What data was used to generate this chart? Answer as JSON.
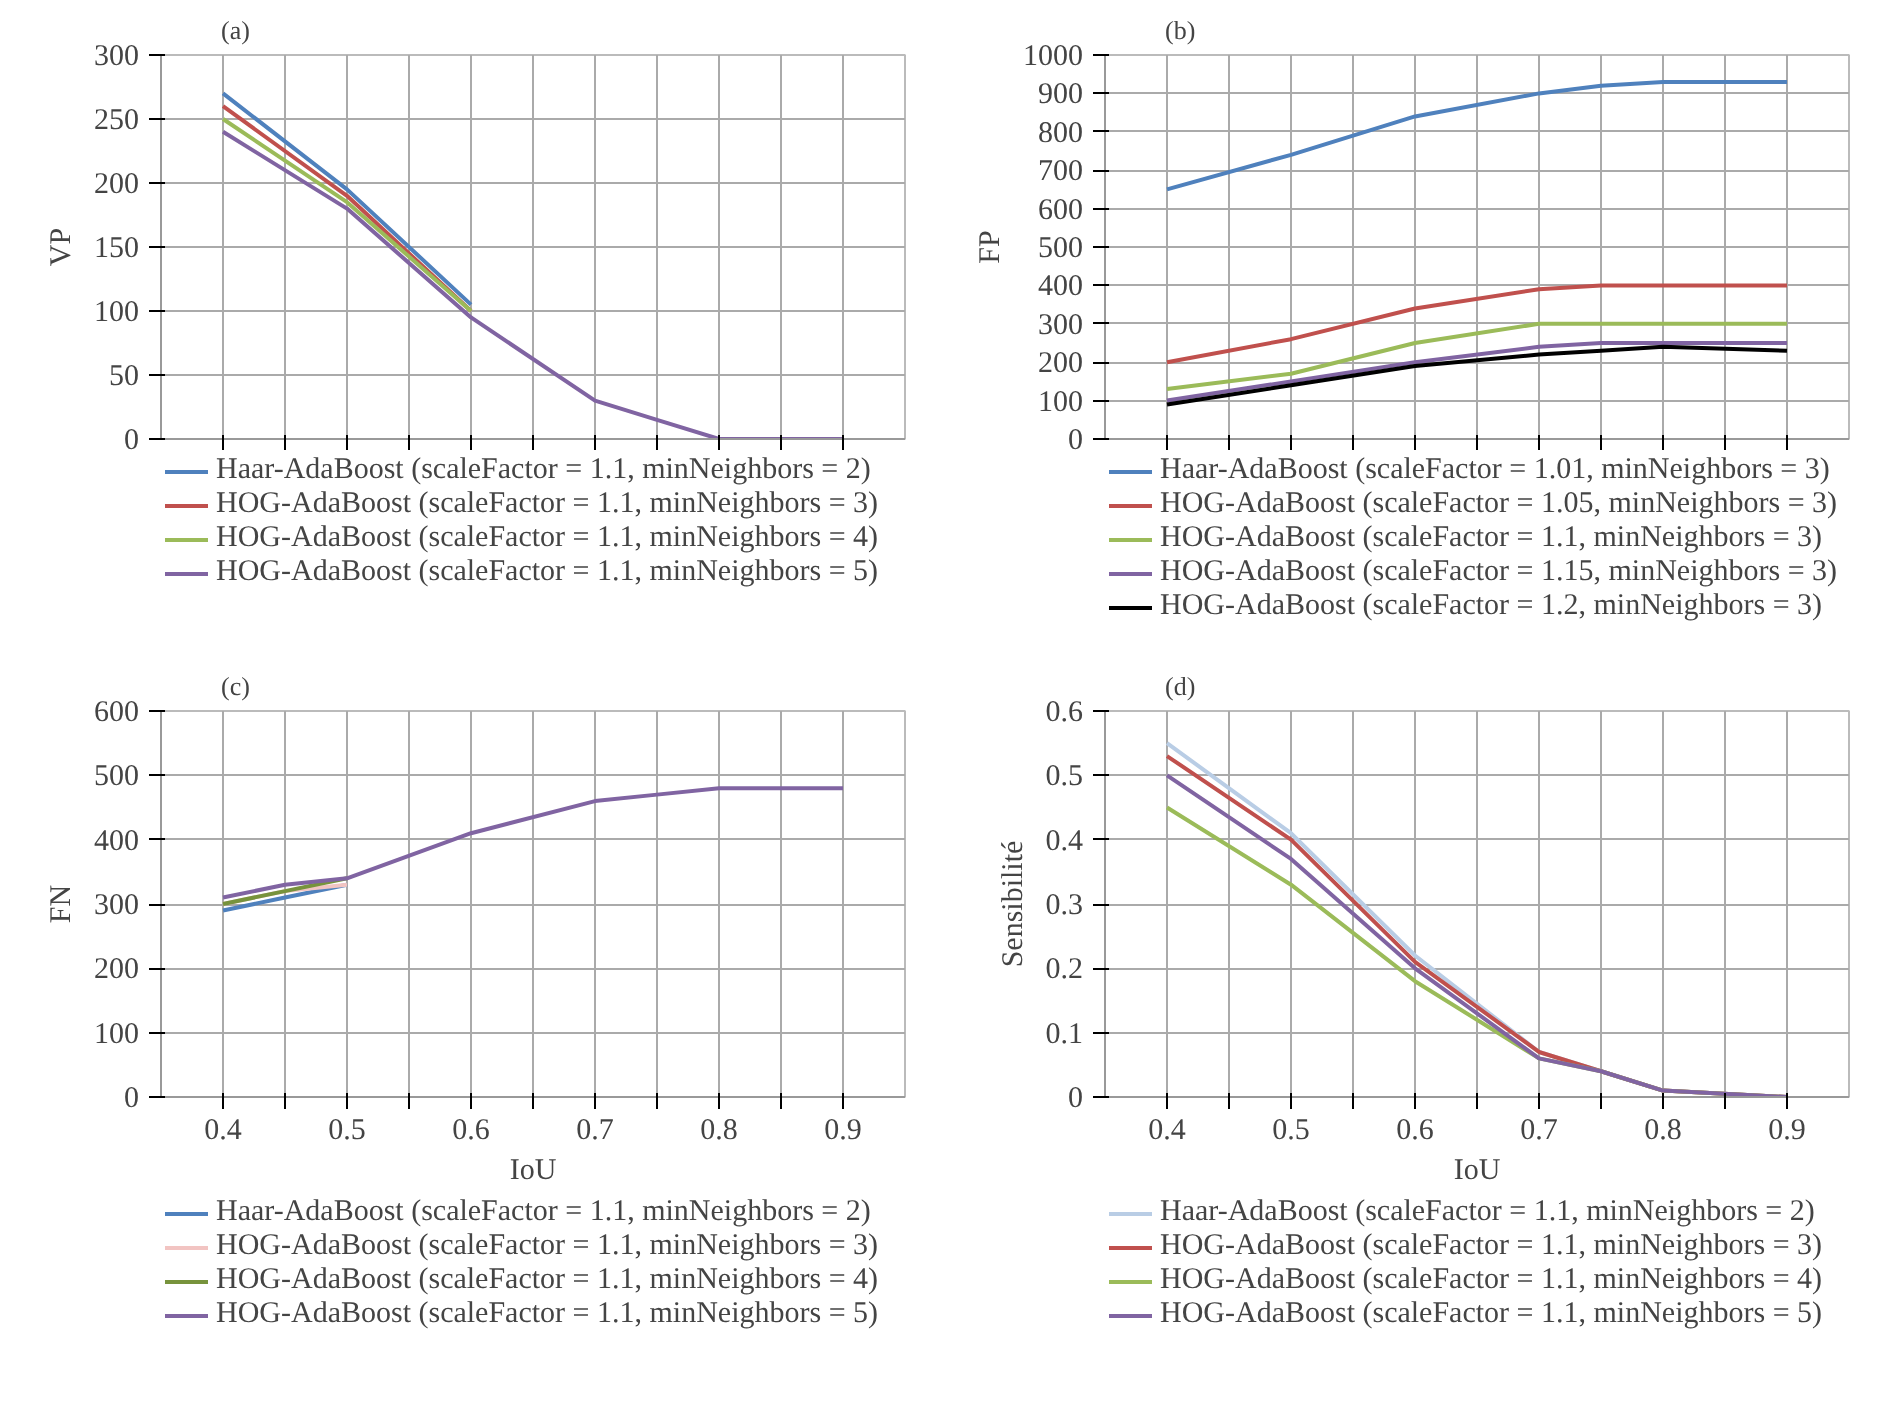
{
  "chart_data": [
    {
      "type": "line",
      "title": "(a)",
      "ylabel": "VP",
      "x": [
        0.4,
        0.5,
        0.6,
        0.7,
        0.75,
        0.8,
        0.9
      ],
      "xlim": [
        0.35,
        0.95
      ],
      "ylim": [
        0,
        300
      ],
      "xticks": [
        0.4,
        {
          "value": 0.45,
          "label": null
        },
        0.5,
        {
          "value": 0.55,
          "label": null
        },
        0.6,
        {
          "value": 0.65,
          "label": null
        },
        0.7,
        {
          "value": 0.75,
          "label": null
        },
        0.8,
        {
          "value": 0.85,
          "label": null
        },
        0.9
      ],
      "yticks": [
        0,
        50,
        100,
        150,
        200,
        250,
        300
      ],
      "tick_labels": "y",
      "grid": true,
      "legend": "bottom",
      "line_style": "solid",
      "marker": "none",
      "series": [
        {
          "name": "Haar-AdaBoost (scaleFactor = 1.1, minNeighbors = 2)",
          "color": "#4f81bd",
          "values": [
            270,
            195,
            105,
            null,
            null,
            null,
            null
          ]
        },
        {
          "name": "HOG-AdaBoost (scaleFactor = 1.1, minNeighbors = 3)",
          "color": "#c0504d",
          "values": [
            260,
            190,
            100,
            null,
            null,
            null,
            null
          ]
        },
        {
          "name": "HOG-AdaBoost (scaleFactor = 1.1, minNeighbors = 4)",
          "color": "#9bbb59",
          "values": [
            250,
            185,
            100,
            null,
            null,
            null,
            null
          ]
        },
        {
          "name": "HOG-AdaBoost (scaleFactor = 1.1, minNeighbors = 5)",
          "color": "#8064a2",
          "values": [
            240,
            180,
            95,
            30,
            15,
            0,
            0
          ]
        }
      ]
    },
    {
      "type": "line",
      "title": "(b)",
      "ylabel": "FP",
      "x": [
        0.4,
        0.5,
        0.6,
        0.7,
        0.75,
        0.8,
        0.9
      ],
      "xlim": [
        0.35,
        0.95
      ],
      "ylim": [
        0,
        1000
      ],
      "xticks": [
        0.4,
        {
          "value": 0.45,
          "label": null
        },
        0.5,
        {
          "value": 0.55,
          "label": null
        },
        0.6,
        {
          "value": 0.65,
          "label": null
        },
        0.7,
        {
          "value": 0.75,
          "label": null
        },
        0.8,
        {
          "value": 0.85,
          "label": null
        },
        0.9
      ],
      "yticks": [
        0,
        100,
        200,
        300,
        400,
        500,
        600,
        700,
        800,
        900,
        1000
      ],
      "tick_labels": "y",
      "grid": true,
      "legend": "bottom",
      "line_style": "solid",
      "marker": "none",
      "series": [
        {
          "name": "Haar-AdaBoost (scaleFactor = 1.01, minNeighbors = 3)",
          "color": "#4f81bd",
          "values": [
            650,
            740,
            840,
            900,
            920,
            930,
            930
          ]
        },
        {
          "name": "HOG-AdaBoost (scaleFactor = 1.05, minNeighbors = 3)",
          "color": "#c0504d",
          "values": [
            200,
            260,
            340,
            390,
            400,
            400,
            400
          ]
        },
        {
          "name": "HOG-AdaBoost (scaleFactor = 1.1, minNeighbors = 3)",
          "color": "#9bbb59",
          "values": [
            130,
            170,
            250,
            300,
            300,
            300,
            300
          ]
        },
        {
          "name": "HOG-AdaBoost (scaleFactor = 1.15, minNeighbors = 3)",
          "color": "#8064a2",
          "values": [
            100,
            150,
            200,
            240,
            250,
            250,
            250
          ]
        },
        {
          "name": "HOG-AdaBoost (scaleFactor = 1.2, minNeighbors = 3)",
          "color": "#000000",
          "values": [
            90,
            140,
            190,
            220,
            230,
            240,
            230
          ]
        }
      ]
    },
    {
      "type": "line",
      "title": "(c)",
      "ylabel": "FN",
      "xlabel": "IoU",
      "x": [
        0.4,
        0.45,
        0.5,
        0.6,
        0.7,
        0.75,
        0.8,
        0.9
      ],
      "xlim": [
        0.35,
        0.95
      ],
      "ylim": [
        0,
        600
      ],
      "xticks": [
        0.4,
        {
          "value": 0.45,
          "label": null
        },
        0.5,
        {
          "value": 0.55,
          "label": null
        },
        0.6,
        {
          "value": 0.65,
          "label": null
        },
        0.7,
        {
          "value": 0.75,
          "label": null
        },
        0.8,
        {
          "value": 0.85,
          "label": null
        },
        0.9
      ],
      "yticks": [
        0,
        100,
        200,
        300,
        400,
        500,
        600
      ],
      "grid": true,
      "legend": "bottom",
      "line_style": "solid",
      "marker": "none",
      "series": [
        {
          "name": "Haar-AdaBoost (scaleFactor = 1.1, minNeighbors = 2)",
          "color": "#4f81bd",
          "values": [
            290,
            310,
            330,
            null,
            null,
            null,
            null,
            null
          ]
        },
        {
          "name": "HOG-AdaBoost (scaleFactor = 1.1, minNeighbors = 3)",
          "color": "#f2c4c2",
          "values": [
            300,
            320,
            330,
            null,
            null,
            null,
            null,
            null
          ]
        },
        {
          "name": "HOG-AdaBoost (scaleFactor = 1.1, minNeighbors = 4)",
          "color": "#77933c",
          "values": [
            300,
            320,
            340,
            null,
            null,
            null,
            null,
            null
          ]
        },
        {
          "name": "HOG-AdaBoost (scaleFactor = 1.1, minNeighbors = 5)",
          "color": "#8064a2",
          "values": [
            310,
            330,
            340,
            410,
            460,
            470,
            480,
            480
          ]
        }
      ]
    },
    {
      "type": "line",
      "title": "(d)",
      "ylabel": "Sensibilité",
      "xlabel": "IoU",
      "x": [
        0.4,
        0.5,
        0.6,
        0.7,
        0.75,
        0.8,
        0.9
      ],
      "xlim": [
        0.35,
        0.95
      ],
      "ylim": [
        0,
        0.6
      ],
      "xticks": [
        0.4,
        {
          "value": 0.45,
          "label": null
        },
        0.5,
        {
          "value": 0.55,
          "label": null
        },
        0.6,
        {
          "value": 0.65,
          "label": null
        },
        0.7,
        {
          "value": 0.75,
          "label": null
        },
        0.8,
        {
          "value": 0.85,
          "label": null
        },
        0.9
      ],
      "yticks": [
        0,
        0.1,
        0.2,
        0.3,
        0.4,
        0.5,
        0.6
      ],
      "grid": true,
      "legend": "bottom",
      "line_style": "solid",
      "marker": "none",
      "series": [
        {
          "name": "Haar-AdaBoost (scaleFactor = 1.1, minNeighbors = 2)",
          "color": "#b9cde5",
          "values": [
            0.55,
            0.41,
            0.22,
            0.07,
            0.04,
            0.01,
            0
          ]
        },
        {
          "name": "HOG-AdaBoost (scaleFactor = 1.1, minNeighbors = 3)",
          "color": "#c0504d",
          "values": [
            0.53,
            0.4,
            0.21,
            0.07,
            0.04,
            0.01,
            0
          ]
        },
        {
          "name": "HOG-AdaBoost (scaleFactor = 1.1, minNeighbors = 4)",
          "color": "#9bbb59",
          "values": [
            0.45,
            0.33,
            0.18,
            0.06,
            0.04,
            0.01,
            0
          ]
        },
        {
          "name": "HOG-AdaBoost (scaleFactor = 1.1, minNeighbors = 5)",
          "color": "#8064a2",
          "values": [
            0.5,
            0.37,
            0.2,
            0.06,
            0.04,
            0.01,
            0
          ]
        }
      ]
    }
  ]
}
